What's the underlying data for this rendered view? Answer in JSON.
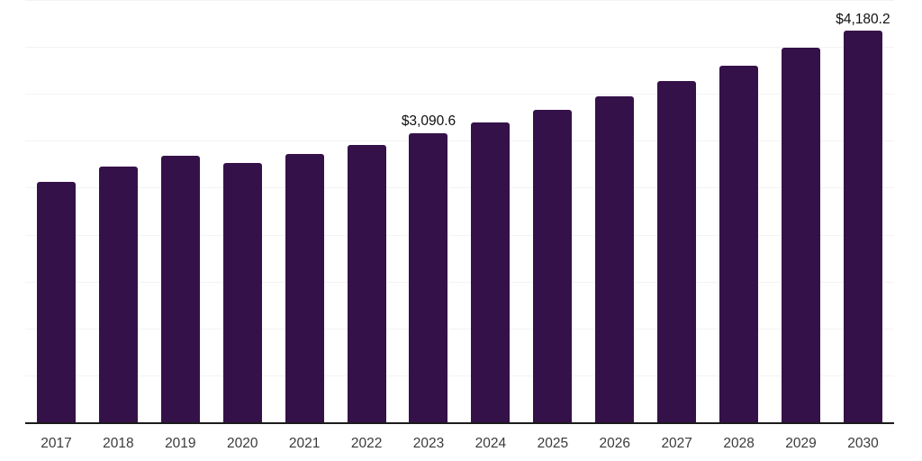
{
  "chart_data": {
    "type": "bar",
    "title": "",
    "xlabel": "",
    "ylabel": "",
    "categories": [
      "2017",
      "2018",
      "2019",
      "2020",
      "2021",
      "2022",
      "2023",
      "2024",
      "2025",
      "2026",
      "2027",
      "2028",
      "2029",
      "2030"
    ],
    "values": [
      2570,
      2735,
      2850,
      2770,
      2870,
      2965,
      3090.6,
      3205,
      3340,
      3485,
      3645,
      3810,
      4000,
      4180.2
    ],
    "data_labels": [
      "",
      "",
      "",
      "",
      "",
      "",
      "$3,090.6",
      "",
      "",
      "",
      "",
      "",
      "",
      "$4,180.2"
    ],
    "ylim": [
      0,
      4500
    ],
    "gridline_step": 500,
    "grid": true,
    "legend": false,
    "legend_position": "none",
    "bar_color": "#351149",
    "gridline_color": "#f3f3f3",
    "axis_line_color": "#1c1c1c",
    "tick_label_color": "#3b3b3b",
    "data_label_color": "#0f0f0f"
  }
}
